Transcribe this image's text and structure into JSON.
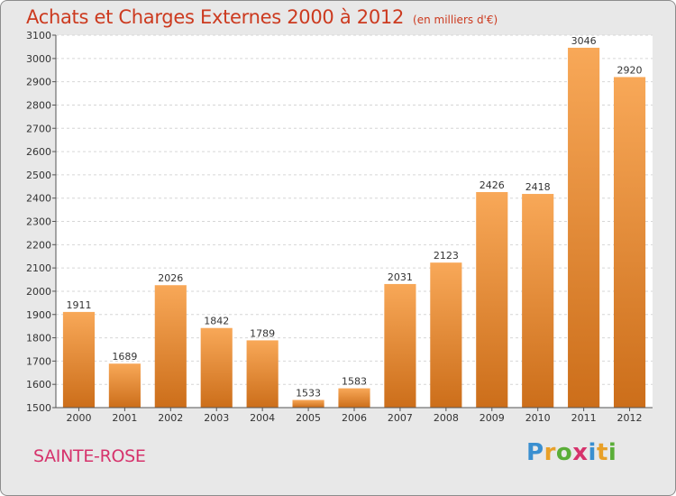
{
  "header": {
    "title": "Achats et Charges Externes 2000 à 2012",
    "subtitle": "(en milliers d'€)"
  },
  "footer": {
    "commune": "SAINTE-ROSE",
    "logo": "Proxiti"
  },
  "colors": {
    "title": "#cc3a1f",
    "commune": "#d6336c",
    "bar_top": "#f8a858",
    "bar_bottom": "#cc6e1a",
    "plot_background": "#ffffff",
    "frame_background": "#e8e8e8"
  },
  "chart_data": {
    "type": "bar",
    "title": "Achats et Charges Externes 2000 à 2012",
    "subtitle": "(en milliers d'€)",
    "categories": [
      "2000",
      "2001",
      "2002",
      "2003",
      "2004",
      "2005",
      "2006",
      "2007",
      "2008",
      "2009",
      "2010",
      "2011",
      "2012"
    ],
    "values": [
      1911,
      1689,
      2026,
      1842,
      1789,
      1533,
      1583,
      2031,
      2123,
      2426,
      2418,
      3046,
      2920
    ],
    "data_labels": [
      "1911",
      "1689",
      "2026",
      "1842",
      "1789",
      "1533",
      "1583",
      "2031",
      "2123",
      "2426",
      "2418",
      "3046",
      "2920"
    ],
    "ylim": [
      1500,
      3100
    ],
    "yticks": [
      1500,
      1600,
      1700,
      1800,
      1900,
      2000,
      2100,
      2200,
      2300,
      2400,
      2500,
      2600,
      2700,
      2800,
      2900,
      3000,
      3100
    ],
    "xlabel": "",
    "ylabel": "",
    "grid": true,
    "legend": "none"
  }
}
